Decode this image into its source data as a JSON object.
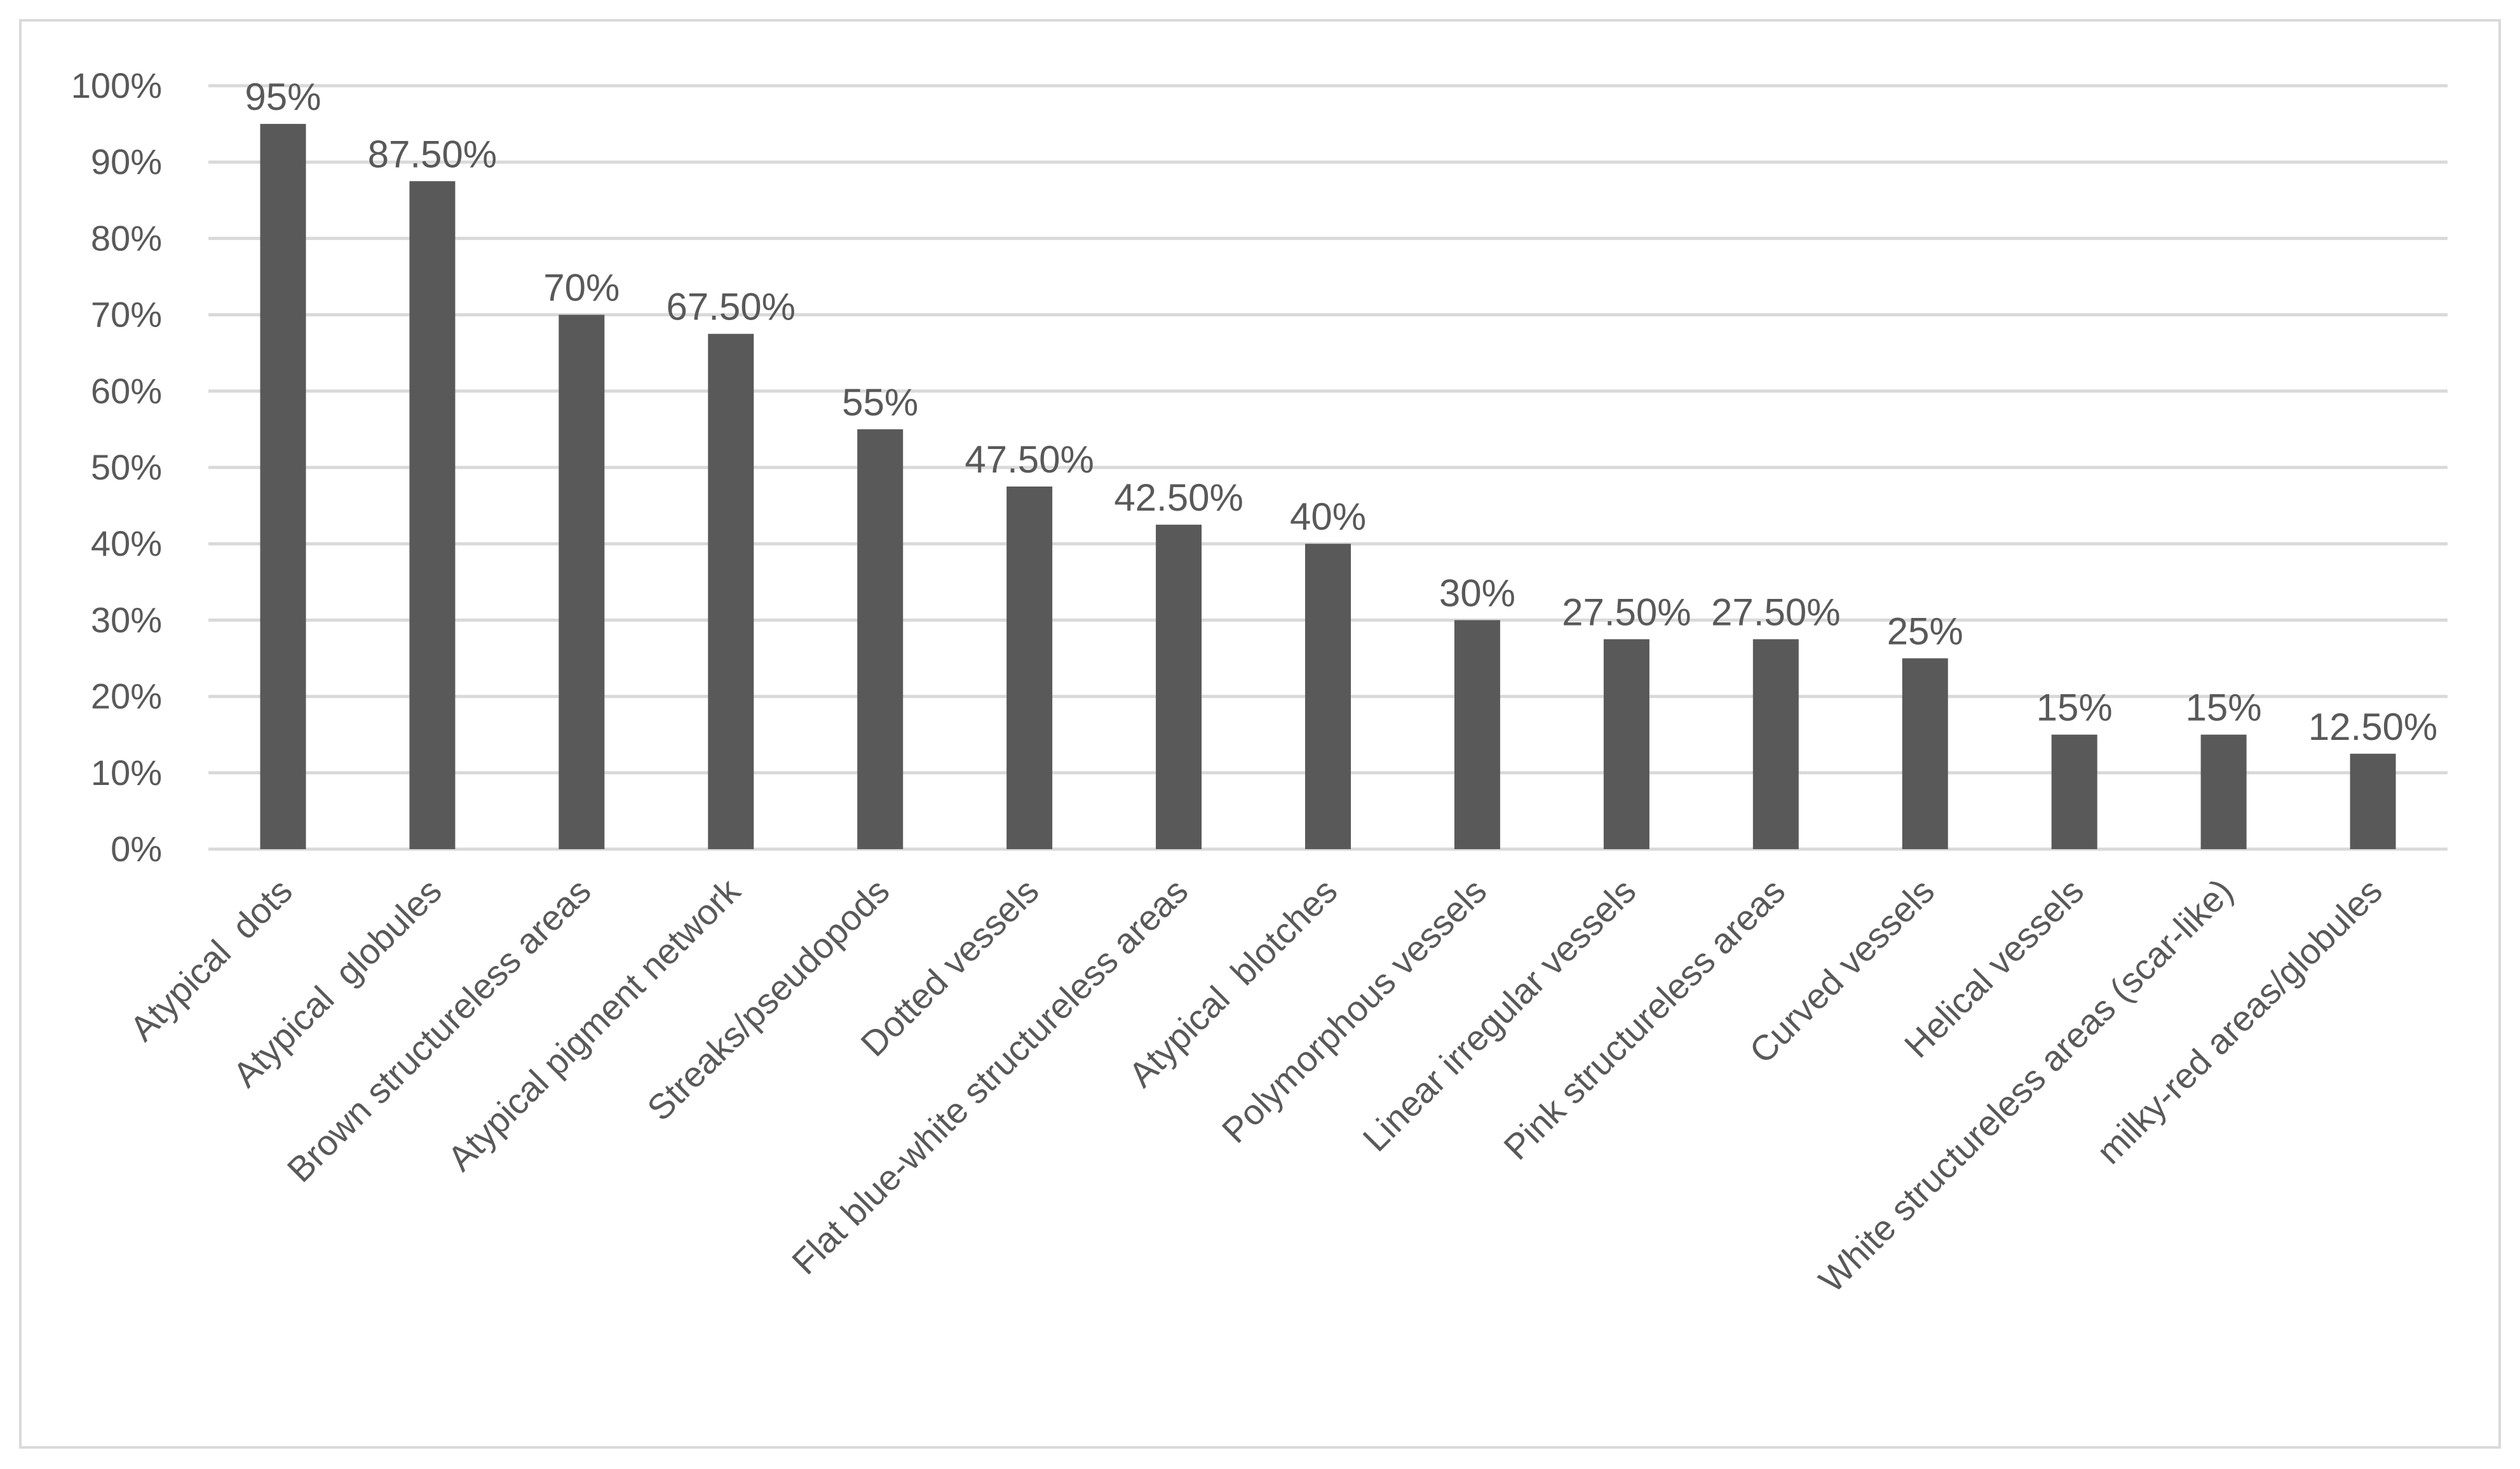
{
  "chart_data": {
    "type": "bar",
    "title": "",
    "xlabel": "",
    "ylabel": "",
    "ylim": [
      0,
      100
    ],
    "y_ticks": [
      0,
      10,
      20,
      30,
      40,
      50,
      60,
      70,
      80,
      90,
      100
    ],
    "y_tick_labels": [
      "0%",
      "10%",
      "20%",
      "30%",
      "40%",
      "50%",
      "60%",
      "70%",
      "80%",
      "90%",
      "100%"
    ],
    "grid": true,
    "legend": "none",
    "bar_color": "#595959",
    "gridline_color": "#d9d9d9",
    "categories": [
      "Atypical  dots",
      "Atypical  globules",
      "Brown structureless areas",
      "Atypical pigment network",
      "Streaks/pseudopods",
      "Dotted vessels",
      "Flat blue-white structureless areas",
      "Atypical  blotches",
      "Polymorphous vessels",
      "Linear irregular vessels",
      "Pink structureless areas",
      "Curved vessels",
      "Helical vessels",
      "White structureless areas (scar-like)",
      "milky-red areas/globules"
    ],
    "values": [
      95,
      87.5,
      70,
      67.5,
      55,
      47.5,
      42.5,
      40,
      30,
      27.5,
      27.5,
      25,
      15,
      15,
      12.5
    ],
    "data_labels": [
      "95%",
      "87.50%",
      "70%",
      "67.50%",
      "55%",
      "47.50%",
      "42.50%",
      "40%",
      "30%",
      "27.50%",
      "27.50%",
      "25%",
      "15%",
      "15%",
      "12.50%"
    ]
  }
}
